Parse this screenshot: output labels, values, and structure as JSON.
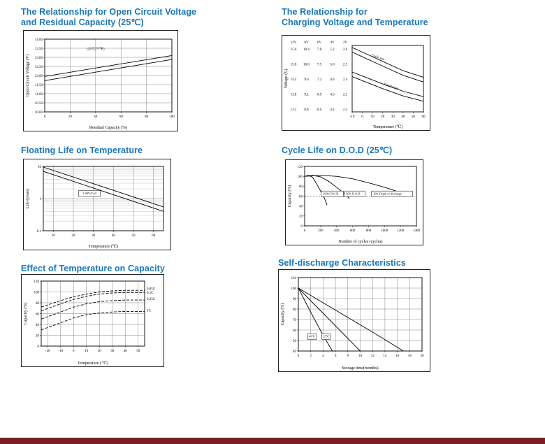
{
  "colors": {
    "accent": "#1877bd",
    "footer": "#7a2025"
  },
  "chart_data": [
    {
      "id": "ocv-residual-capacity",
      "type": "line",
      "title_lines": [
        "The Relationship for Open Circuit Voltage",
        "and Residual Capacity (25℃)"
      ],
      "xlabel": "Residual Capacity (%)",
      "ylabel": "Open Circuit Voltage (V)",
      "x": {
        "min": 0,
        "max": 100,
        "ticks": [
          0,
          20,
          40,
          60,
          80,
          100
        ]
      },
      "y": {
        "min": 10,
        "max": 14,
        "ticks": [
          14,
          13.5,
          13,
          12.5,
          12,
          11.5,
          11,
          10.5,
          10
        ],
        "tick_labels": [
          "14.00",
          "13.50",
          "13.00",
          "12.50",
          "12.00",
          "11.50",
          "11.00",
          "10.50",
          "10.00"
        ]
      },
      "grid": true,
      "series": [
        {
          "name": "upper-line",
          "points": [
            [
              0,
              11.95
            ],
            [
              100,
              13.1
            ]
          ]
        },
        {
          "name": "lower-line",
          "points": [
            [
              0,
              11.72
            ],
            [
              100,
              12.88
            ]
          ]
        }
      ],
      "annotations": [
        {
          "text": "(25℃/77℉)",
          "x": 40,
          "y": 13.4,
          "size": 5
        }
      ],
      "layout": {
        "margins": {
          "l": 30,
          "t": 12,
          "r": 8,
          "b": 27
        }
      }
    },
    {
      "id": "charging-voltage-temperature",
      "type": "line",
      "title_lines": [
        "The Relationship for",
        "Charging Voltage and Temperature"
      ],
      "xlabel": "Temperature (℃)",
      "ylabel": "Voltage (V)",
      "x": {
        "min": -10,
        "max": 60,
        "ticks": [
          -10,
          0,
          10,
          20,
          30,
          40,
          50,
          60
        ]
      },
      "y": {
        "min": 0,
        "max": 1,
        "ticks": []
      },
      "y_columns": {
        "headers": [
          "12V",
          "8V",
          "6V",
          "4V",
          "2V"
        ],
        "rows": [
          [
            "15.6",
            "10.4",
            "7.8",
            "5.2",
            "2.6"
          ],
          [
            "15.0",
            "10.0",
            "7.5",
            "5.0",
            "2.5"
          ],
          [
            "14.4",
            "9.6",
            "7.2",
            "4.8",
            "2.4"
          ],
          [
            "13.8",
            "9.2",
            "6.9",
            "4.6",
            "2.3"
          ],
          [
            "13.2",
            "8.8",
            "6.6",
            "4.4",
            "2.2"
          ]
        ]
      },
      "grid": false,
      "series": [
        {
          "name": "cycle-use-upper",
          "points": [
            [
              -10,
              0.97
            ],
            [
              0,
              0.9
            ],
            [
              20,
              0.76
            ],
            [
              40,
              0.62
            ],
            [
              60,
              0.52
            ]
          ]
        },
        {
          "name": "cycle-use-lower",
          "points": [
            [
              -10,
              0.9
            ],
            [
              0,
              0.83
            ],
            [
              20,
              0.69
            ],
            [
              40,
              0.55
            ],
            [
              60,
              0.45
            ]
          ]
        },
        {
          "name": "trickle-use-upper",
          "points": [
            [
              -10,
              0.6
            ],
            [
              0,
              0.54
            ],
            [
              20,
              0.42
            ],
            [
              40,
              0.31
            ],
            [
              60,
              0.23
            ]
          ]
        },
        {
          "name": "trickle-use-lower",
          "points": [
            [
              -10,
              0.53
            ],
            [
              0,
              0.47
            ],
            [
              20,
              0.35
            ],
            [
              40,
              0.24
            ],
            [
              60,
              0.16
            ]
          ]
        }
      ],
      "annotations": [
        {
          "text": "Cycle use",
          "x": 15,
          "y": 0.81,
          "size": 5,
          "rotate": 20
        },
        {
          "text": "Trickle use",
          "x": 28,
          "y": 0.37,
          "size": 5,
          "rotate": 18
        }
      ],
      "layout": {
        "margins": {
          "l": 100,
          "t": 14,
          "r": 9,
          "b": 26
        }
      }
    },
    {
      "id": "floating-life-temperature",
      "type": "line",
      "title_lines": [
        "Floating Life on Temperature"
      ],
      "xlabel": "Temperature (℃)",
      "ylabel": "Life (years)",
      "x": {
        "min": 5,
        "max": 65,
        "ticks": [
          10,
          20,
          30,
          40,
          50,
          60
        ]
      },
      "y": {
        "min": 0.1,
        "max": 10,
        "log": true,
        "ticks": [
          10,
          1,
          0.1
        ],
        "tick_labels": [
          "10",
          "1",
          "0.1"
        ]
      },
      "grid": true,
      "series": [
        {
          "name": "band-upper",
          "points": [
            [
              5,
              9.5
            ],
            [
              65,
              0.55
            ]
          ]
        },
        {
          "name": "band-lower",
          "points": [
            [
              5,
              7.0
            ],
            [
              65,
              0.4
            ]
          ]
        }
      ],
      "annotations": [
        {
          "text": "1.90V/Cell",
          "x": 28,
          "y": 1.35,
          "size": 4.5,
          "box": true
        }
      ],
      "layout": {
        "margins": {
          "l": 28,
          "t": 10,
          "r": 10,
          "b": 27
        }
      }
    },
    {
      "id": "cycle-life-dod",
      "type": "line",
      "title_lines": [
        "Cycle Life on D.O.D (25℃)"
      ],
      "xlabel": "Number of cycles (cycles)",
      "ylabel": "Capacity (%)",
      "x": {
        "min": 0,
        "max": 1400,
        "ticks": [
          0,
          200,
          400,
          600,
          800,
          1000,
          1200,
          1400
        ]
      },
      "y": {
        "min": 0,
        "max": 120,
        "ticks": [
          0,
          20,
          40,
          60,
          80,
          100,
          120
        ]
      },
      "grid": false,
      "ref_lines": [
        {
          "y": 60,
          "dash": "2,2"
        }
      ],
      "series": [
        {
          "name": "dod-100",
          "points": [
            [
              0,
              100
            ],
            [
              50,
              102
            ],
            [
              100,
              98
            ],
            [
              150,
              85
            ],
            [
              200,
              70
            ],
            [
              250,
              55
            ],
            [
              280,
              42
            ]
          ]
        },
        {
          "name": "dod-50",
          "points": [
            [
              0,
              100
            ],
            [
              100,
              102
            ],
            [
              200,
              99
            ],
            [
              300,
              90
            ],
            [
              400,
              78
            ],
            [
              500,
              65
            ],
            [
              560,
              55
            ]
          ]
        },
        {
          "name": "dod-30",
          "points": [
            [
              0,
              100
            ],
            [
              200,
              102
            ],
            [
              400,
              100
            ],
            [
              600,
              95
            ],
            [
              800,
              87
            ],
            [
              1000,
              78
            ],
            [
              1150,
              70
            ],
            [
              1250,
              62
            ]
          ]
        }
      ],
      "annotations": [
        {
          "text": "100% D.O.D.",
          "x": 230,
          "y": 63,
          "size": 4.2,
          "anchor": "start",
          "box": true
        },
        {
          "text": "50% D.O.D.",
          "x": 520,
          "y": 63,
          "size": 4.2,
          "anchor": "start",
          "box": true
        },
        {
          "text": "30% Depth of discharge",
          "x": 860,
          "y": 63,
          "size": 4.2,
          "anchor": "start",
          "box": true
        }
      ],
      "layout": {
        "margins": {
          "l": 27,
          "t": 9,
          "r": 9,
          "b": 27
        }
      }
    },
    {
      "id": "temperature-capacity",
      "type": "line",
      "title_lines": [
        "Effect of Temperature on Capacity"
      ],
      "xlabel": "Temperature ( ℃)",
      "ylabel": "Capacity (%)",
      "x": {
        "min": -25,
        "max": 55,
        "ticks": [
          -20,
          -10,
          0,
          10,
          20,
          30,
          40,
          50
        ]
      },
      "y": {
        "min": 0,
        "max": 120,
        "ticks": [
          0,
          20,
          40,
          60,
          80,
          100,
          120
        ]
      },
      "grid": true,
      "series": [
        {
          "name": "c005",
          "dash": "4,2",
          "points": [
            [
              -25,
              72
            ],
            [
              -10,
              84
            ],
            [
              0,
              91
            ],
            [
              10,
              96
            ],
            [
              20,
              100
            ],
            [
              30,
              102
            ],
            [
              40,
              103
            ],
            [
              55,
              103
            ]
          ]
        },
        {
          "name": "c01",
          "dash": "4,2",
          "points": [
            [
              -25,
              65
            ],
            [
              -10,
              78
            ],
            [
              0,
              86
            ],
            [
              10,
              92
            ],
            [
              20,
              96
            ],
            [
              30,
              98
            ],
            [
              40,
              99
            ],
            [
              55,
              99
            ]
          ]
        },
        {
          "name": "c025",
          "dash": "4,2",
          "points": [
            [
              -25,
              50
            ],
            [
              -10,
              63
            ],
            [
              0,
              72
            ],
            [
              10,
              78
            ],
            [
              20,
              82
            ],
            [
              30,
              84
            ],
            [
              40,
              85
            ],
            [
              55,
              85
            ]
          ]
        },
        {
          "name": "c1",
          "dash": "4,2",
          "points": [
            [
              -25,
              30
            ],
            [
              -10,
              43
            ],
            [
              0,
              52
            ],
            [
              10,
              58
            ],
            [
              20,
              61
            ],
            [
              30,
              63
            ],
            [
              40,
              64
            ],
            [
              55,
              64
            ]
          ]
        }
      ],
      "annotations": [
        {
          "text": "0.05C",
          "x": 55,
          "y": 104,
          "dx": 3,
          "size": 5,
          "anchor": "start"
        },
        {
          "text": "0.1C",
          "x": 55,
          "y": 97,
          "dx": 3,
          "size": 5,
          "anchor": "start"
        },
        {
          "text": "0.25C",
          "x": 55,
          "y": 85,
          "dx": 3,
          "size": 5,
          "anchor": "start"
        },
        {
          "text": "1C",
          "x": 55,
          "y": 64,
          "dx": 3,
          "size": 5,
          "anchor": "start"
        }
      ],
      "layout": {
        "margins": {
          "l": 28,
          "t": 9,
          "r": 27,
          "b": 29
        }
      }
    },
    {
      "id": "self-discharge",
      "type": "line",
      "title_lines": [
        "Self-discharge Characteristics"
      ],
      "xlabel": "Storage time(months)",
      "ylabel": "Capacity (%)",
      "x": {
        "min": 0,
        "max": 20,
        "ticks": [
          0,
          2,
          4,
          6,
          8,
          10,
          12,
          14,
          16,
          18,
          20
        ]
      },
      "y": {
        "min": 40,
        "max": 110,
        "ticks": [
          40,
          50,
          60,
          70,
          80,
          90,
          100,
          110
        ]
      },
      "grid": true,
      "series": [
        {
          "name": "steep",
          "points": [
            [
              0,
              100
            ],
            [
              2,
              77
            ],
            [
              4,
              55
            ],
            [
              5.5,
              40
            ]
          ]
        },
        {
          "name": "middle",
          "points": [
            [
              0,
              100
            ],
            [
              4,
              76
            ],
            [
              8,
              52
            ],
            [
              10,
              40
            ]
          ]
        },
        {
          "name": "shallow",
          "points": [
            [
              0,
              100
            ],
            [
              6,
              79
            ],
            [
              12,
              58
            ],
            [
              17,
              40
            ]
          ]
        }
      ],
      "annotations": [
        {
          "text": "40℃",
          "x": 2.2,
          "y": 53,
          "size": 4.2,
          "box": true
        },
        {
          "text": "25℃",
          "x": 4.5,
          "y": 53,
          "size": 4.2,
          "box": true
        }
      ],
      "layout": {
        "margins": {
          "l": 28,
          "t": 11,
          "r": 11,
          "b": 29
        }
      }
    }
  ]
}
